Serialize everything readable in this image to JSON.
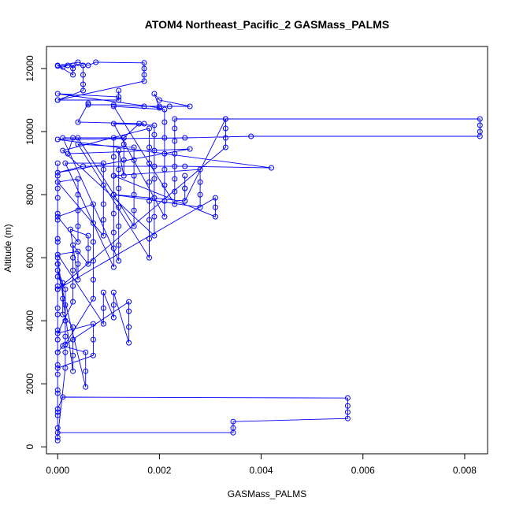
{
  "chart_data": {
    "type": "scatter",
    "title": "ATOM4 Northeast_Pacific_2 GASMass_PALMS",
    "xlabel": "GASMass_PALMS",
    "ylabel": "Altitude (m)",
    "xlim": [
      -0.00022,
      0.00845
    ],
    "ylim": [
      -220,
      12700
    ],
    "x_ticks": [
      0,
      0.002,
      0.004,
      0.006,
      0.008
    ],
    "x_tick_labels": [
      "0.000",
      "0.002",
      "0.004",
      "0.006",
      "0.008"
    ],
    "y_ticks": [
      0,
      2000,
      4000,
      6000,
      8000,
      10000,
      12000
    ],
    "y_tick_labels": [
      "0",
      "2000",
      "4000",
      "6000",
      "8000",
      "10000",
      "12000"
    ],
    "grid": false,
    "legend": "none",
    "colors": {
      "series": "#0000ff",
      "axis": "#000000",
      "background": "#ffffff"
    },
    "series": [
      {
        "marker": "open-circle",
        "line": "connected",
        "points": [
          [
            0.0,
            200
          ],
          [
            0.0,
            600
          ],
          [
            0.0,
            1100
          ],
          [
            0.0,
            1700
          ],
          [
            0.0,
            2300
          ],
          [
            0.0,
            3000
          ],
          [
            0.0,
            3700
          ],
          [
            0.0,
            4400
          ],
          [
            0.0,
            5100
          ],
          [
            0.0,
            5800
          ],
          [
            0.0,
            6500
          ],
          [
            0.0,
            7200
          ],
          [
            0.0,
            7900
          ],
          [
            0.0,
            8600
          ],
          [
            0.0,
            9000
          ],
          [
            0.0,
            8200
          ],
          [
            0.0,
            7400
          ],
          [
            0.0,
            6600
          ],
          [
            0.0,
            5800
          ],
          [
            0.0,
            5000
          ],
          [
            0.0,
            4200
          ],
          [
            0.0,
            3400
          ],
          [
            0.0,
            2600
          ],
          [
            0.0,
            1800
          ],
          [
            0.0,
            1000
          ],
          [
            0.0,
            450
          ],
          [
            0.00345,
            450
          ],
          [
            0.00345,
            600
          ],
          [
            0.00345,
            800
          ],
          [
            0.0057,
            900
          ],
          [
            0.0057,
            1100
          ],
          [
            0.0057,
            1300
          ],
          [
            0.0057,
            1550
          ],
          [
            0.0001,
            1580
          ],
          [
            0.0,
            1200
          ],
          [
            0.0,
            300
          ],
          [
            0.00015,
            2500
          ],
          [
            0.00015,
            3000
          ],
          [
            0.00015,
            3500
          ],
          [
            0.00015,
            4000
          ],
          [
            0.00015,
            4500
          ],
          [
            0.00015,
            5000
          ],
          [
            0.0,
            5400
          ],
          [
            0.0,
            6000
          ],
          [
            0.0003,
            2400
          ],
          [
            0.0003,
            2900
          ],
          [
            0.0003,
            3400
          ],
          [
            0.0003,
            3800
          ],
          [
            0.0001,
            4200
          ],
          [
            0.0001,
            4700
          ],
          [
            0.0001,
            5200
          ],
          [
            0.0,
            5600
          ],
          [
            0.00055,
            1900
          ],
          [
            0.00055,
            2400
          ],
          [
            0.00055,
            3000
          ],
          [
            0.0001,
            3200
          ],
          [
            0.0,
            3000
          ],
          [
            0.0,
            2500
          ],
          [
            0.0007,
            2900
          ],
          [
            0.0007,
            3400
          ],
          [
            0.0007,
            3900
          ],
          [
            0.0,
            3600
          ],
          [
            0.0003,
            4600
          ],
          [
            0.0003,
            5100
          ],
          [
            0.0003,
            5600
          ],
          [
            0.0003,
            6000
          ],
          [
            0.0003,
            6400
          ],
          [
            0.0006,
            5800
          ],
          [
            0.0006,
            6300
          ],
          [
            0.0006,
            6700
          ],
          [
            0.00025,
            6900
          ],
          [
            0.0004,
            5300
          ],
          [
            0.0004,
            5800
          ],
          [
            0.0004,
            6200
          ],
          [
            0.0,
            6100
          ],
          [
            0.0009,
            3900
          ],
          [
            0.0009,
            4400
          ],
          [
            0.0009,
            4900
          ],
          [
            0.0011,
            4100
          ],
          [
            0.0011,
            4500
          ],
          [
            0.0011,
            4900
          ],
          [
            0.0014,
            3300
          ],
          [
            0.0014,
            3800
          ],
          [
            0.0014,
            4300
          ],
          [
            0.0014,
            4600
          ],
          [
            0.00015,
            3250
          ],
          [
            0.0007,
            4700
          ],
          [
            0.0007,
            5300
          ],
          [
            0.0007,
            5900
          ],
          [
            0.0007,
            6500
          ],
          [
            0.0007,
            7100
          ],
          [
            0.0007,
            7700
          ],
          [
            0.0,
            7300
          ],
          [
            0.0004,
            6500
          ],
          [
            0.0004,
            7000
          ],
          [
            0.0004,
            7500
          ],
          [
            0.0004,
            8000
          ],
          [
            0.0004,
            8500
          ],
          [
            0.0,
            8400
          ],
          [
            0.0009,
            6700
          ],
          [
            0.0009,
            7200
          ],
          [
            0.0009,
            7700
          ],
          [
            0.0009,
            8300
          ],
          [
            0.0009,
            8800
          ],
          [
            0.0009,
            9000
          ],
          [
            0.00015,
            9000
          ],
          [
            0.0011,
            5700
          ],
          [
            0.0011,
            6300
          ],
          [
            0.0011,
            6800
          ],
          [
            0.0011,
            7400
          ],
          [
            0.0011,
            8000
          ],
          [
            0.0011,
            8600
          ],
          [
            0.0011,
            9200
          ],
          [
            0.0011,
            9800
          ],
          [
            0.0001,
            9800
          ],
          [
            0.0012,
            5900
          ],
          [
            0.0012,
            6400
          ],
          [
            0.0012,
            7000
          ],
          [
            0.0012,
            7600
          ],
          [
            0.0012,
            8200
          ],
          [
            0.0012,
            8800
          ],
          [
            0.0012,
            9400
          ],
          [
            0.0013,
            8600
          ],
          [
            0.0013,
            9100
          ],
          [
            0.0013,
            9600
          ],
          [
            0.0013,
            9800
          ],
          [
            0.0004,
            9800
          ],
          [
            0.0015,
            7000
          ],
          [
            0.0015,
            7500
          ],
          [
            0.0015,
            8000
          ],
          [
            0.0015,
            8600
          ],
          [
            0.0015,
            9100
          ],
          [
            0.0015,
            9500
          ],
          [
            0.0004,
            9600
          ],
          [
            0.0018,
            6000
          ],
          [
            0.0018,
            6600
          ],
          [
            0.0018,
            7200
          ],
          [
            0.0018,
            7800
          ],
          [
            0.0018,
            8400
          ],
          [
            0.0018,
            9000
          ],
          [
            0.0018,
            9500
          ],
          [
            0.0018,
            10100
          ],
          [
            0.0001,
            9400
          ],
          [
            0.0019,
            6700
          ],
          [
            0.0019,
            7300
          ],
          [
            0.0019,
            7900
          ],
          [
            0.0019,
            8500
          ],
          [
            0.0019,
            8900
          ],
          [
            0.0019,
            9400
          ],
          [
            0.0019,
            9900
          ],
          [
            0.0019,
            10200
          ],
          [
            0.0011,
            10250
          ],
          [
            0.0021,
            7300
          ],
          [
            0.0021,
            7800
          ],
          [
            0.0021,
            8300
          ],
          [
            0.0021,
            8800
          ],
          [
            0.0021,
            9300
          ],
          [
            0.0021,
            9800
          ],
          [
            0.0021,
            10300
          ],
          [
            0.0021,
            10700
          ],
          [
            0.0011,
            10800
          ],
          [
            0.0023,
            7700
          ],
          [
            0.0023,
            8100
          ],
          [
            0.0023,
            8500
          ],
          [
            0.0023,
            8900
          ],
          [
            0.0023,
            9300
          ],
          [
            0.0023,
            9700
          ],
          [
            0.0023,
            10100
          ],
          [
            0.0023,
            10400
          ],
          [
            0.0033,
            10400
          ],
          [
            0.0025,
            7800
          ],
          [
            0.0025,
            8200
          ],
          [
            0.0025,
            8600
          ],
          [
            0.0025,
            8200
          ],
          [
            0.0025,
            7800
          ],
          [
            0.0011,
            8000
          ],
          [
            0.0028,
            7600
          ],
          [
            0.0028,
            8000
          ],
          [
            0.0028,
            8400
          ],
          [
            0.0028,
            8800
          ],
          [
            0.0011,
            8600
          ],
          [
            0.0031,
            7300
          ],
          [
            0.0031,
            7600
          ],
          [
            0.0031,
            7900
          ],
          [
            0.0,
            5000
          ],
          [
            0.0033,
            9500
          ],
          [
            0.0033,
            9800
          ],
          [
            0.0033,
            10100
          ],
          [
            0.0033,
            10400
          ],
          [
            0.0083,
            10400
          ],
          [
            0.0083,
            10200
          ],
          [
            0.0083,
            10000
          ],
          [
            0.0083,
            9850
          ],
          [
            0.0038,
            9850
          ],
          [
            0.0025,
            9800
          ],
          [
            0.0,
            9750
          ],
          [
            0.0042,
            8850
          ],
          [
            0.0025,
            8900
          ],
          [
            0.0005,
            8900
          ],
          [
            0.0,
            8700
          ],
          [
            0.0026,
            9450
          ],
          [
            0.0002,
            9300
          ],
          [
            0.0003,
            9800
          ],
          [
            0.0013,
            9800
          ],
          [
            0.0016,
            10250
          ],
          [
            0.0017,
            10250
          ],
          [
            0.0004,
            10300
          ],
          [
            0.0006,
            10900
          ],
          [
            0.0006,
            10850
          ],
          [
            0.0011,
            10850
          ],
          [
            0.0017,
            10800
          ],
          [
            0.002,
            10800
          ],
          [
            0.0022,
            10800
          ],
          [
            0.0026,
            10800
          ],
          [
            0.002,
            11000
          ],
          [
            0.0019,
            11200
          ],
          [
            0.002,
            10750
          ],
          [
            0.0,
            11200
          ],
          [
            0.0012,
            11100
          ],
          [
            0.0012,
            11300
          ],
          [
            0.0012,
            11000
          ],
          [
            0.0,
            11000
          ],
          [
            0.0005,
            11300
          ],
          [
            0.0005,
            11500
          ],
          [
            0.0005,
            11800
          ],
          [
            0.0005,
            12100
          ],
          [
            0.0,
            12100
          ],
          [
            0.0003,
            11800
          ],
          [
            0.0003,
            12000
          ],
          [
            0.0003,
            12100
          ],
          [
            0.0002,
            12100
          ],
          [
            0.0001,
            12050
          ],
          [
            0.0,
            12080
          ],
          [
            0.0004,
            12200
          ],
          [
            0.0006,
            12100
          ],
          [
            0.00075,
            12200
          ],
          [
            0.0017,
            12180
          ],
          [
            0.0017,
            12000
          ],
          [
            0.0017,
            11800
          ],
          [
            0.0017,
            11600
          ],
          [
            0.0,
            11000
          ]
        ]
      }
    ]
  }
}
